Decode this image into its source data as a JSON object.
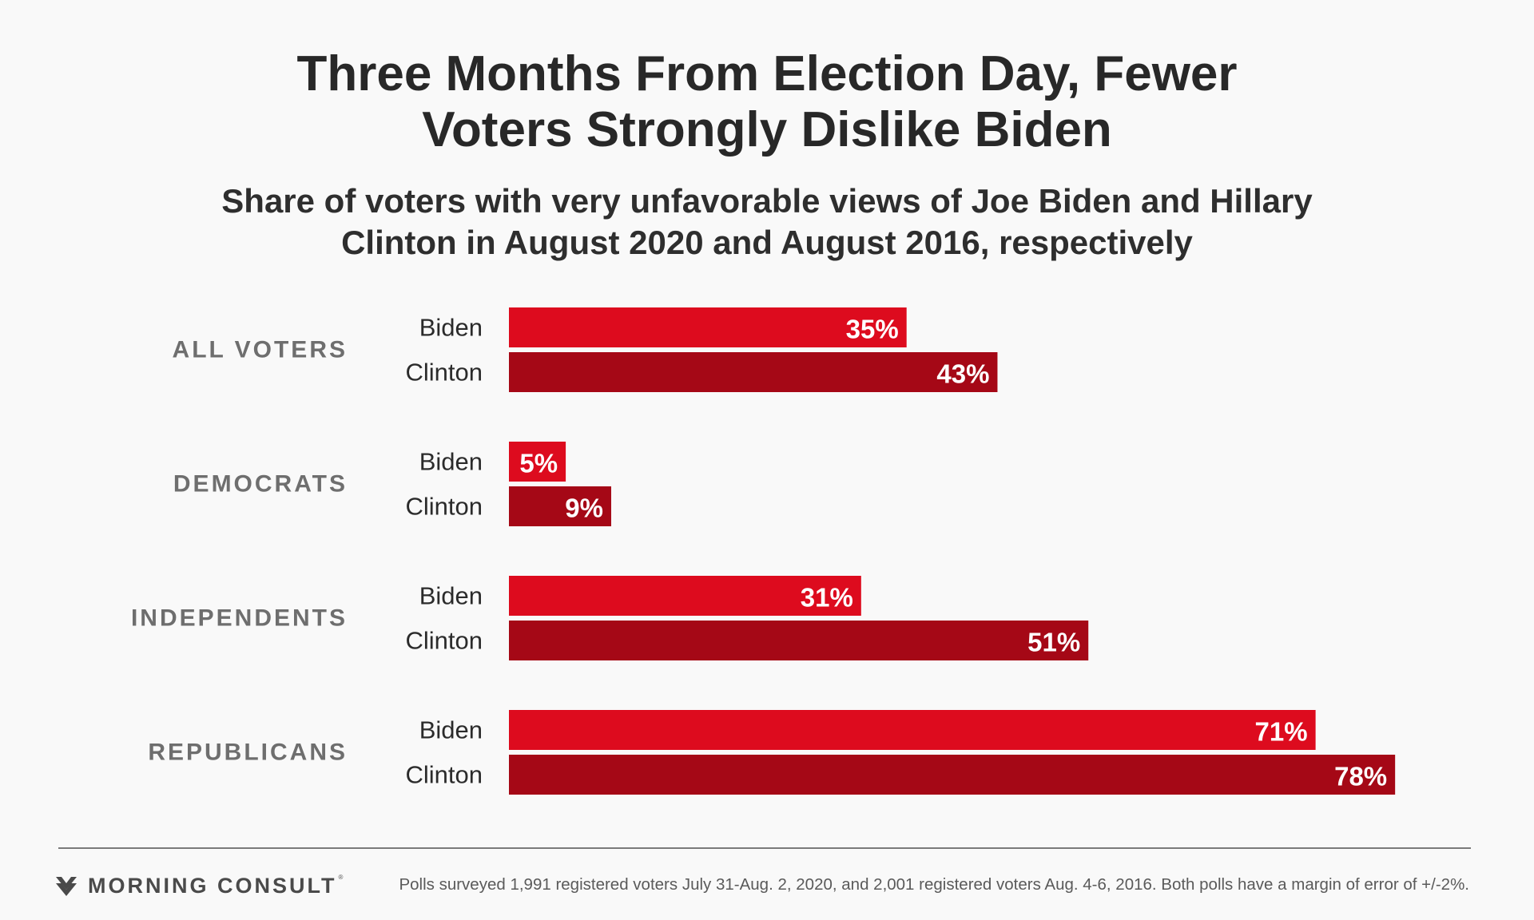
{
  "header": {
    "title_lines": [
      "Three Months From Election Day, Fewer",
      "Voters Strongly Dislike Biden"
    ],
    "subtitle_lines": [
      "Share of voters with very unfavorable views of Joe Biden and Hillary",
      "Clinton in August 2020 and August 2016, respectively"
    ]
  },
  "chart_data": {
    "type": "bar",
    "orientation": "horizontal",
    "title": "Three Months From Election Day, Fewer Voters Strongly Dislike Biden",
    "subtitle": "Share of voters with very unfavorable views of Joe Biden and Hillary Clinton in August 2020 and August 2016, respectively",
    "categories": [
      "ALL VOTERS",
      "DEMOCRATS",
      "INDEPENDENTS",
      "REPUBLICANS"
    ],
    "series": [
      {
        "name": "Biden",
        "values": [
          35,
          5,
          31,
          71
        ],
        "color": "#dd0b1e"
      },
      {
        "name": "Clinton",
        "values": [
          43,
          9,
          51,
          78
        ],
        "color": "#a50816"
      }
    ],
    "value_suffix": "%",
    "xlim": [
      0,
      100
    ],
    "grid": false,
    "legend": "none (series names shown as row labels)"
  },
  "footer": {
    "logo_text": "MORNING CONSULT",
    "logo_reg": "®",
    "note": "Polls surveyed 1,991 registered voters July 31-Aug. 2, 2020, and 2,001 registered voters Aug. 4-6, 2016. Both polls have a margin of error of +/-2%."
  },
  "colors": {
    "background": "#f9f9f9",
    "category_label": "#6e6e6e",
    "logo": "#4a4a4a"
  }
}
